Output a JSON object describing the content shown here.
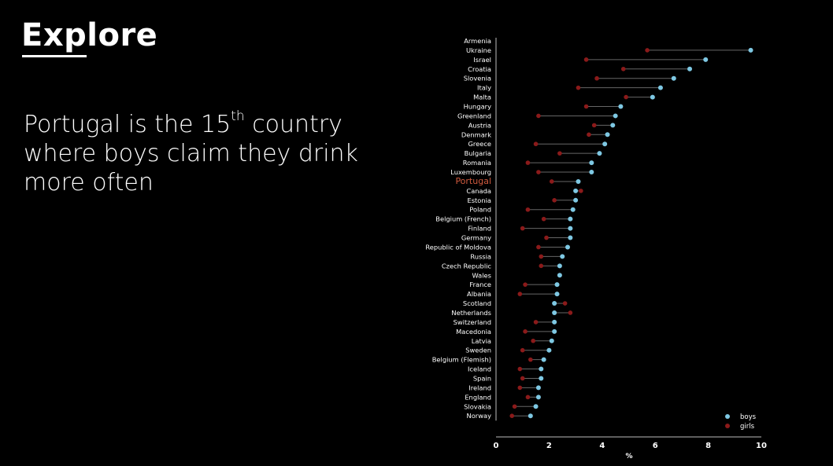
{
  "page": {
    "title": "Explore",
    "subtitle_pre": "Portugal is the 15",
    "subtitle_sup": "th",
    "subtitle_post": " country where boys claim they drink more often"
  },
  "chart_data": {
    "type": "dumbbell",
    "title": "",
    "xlabel": "%",
    "ylabel": "",
    "xlim": [
      0,
      10
    ],
    "xticks": [
      0,
      2,
      4,
      6,
      8,
      10
    ],
    "highlight": "Portugal",
    "legend_position": "bottom-right",
    "colors": {
      "boys": "#7ec8e3",
      "girls": "#8b1a1a",
      "highlight": "#d05a3e",
      "connector": "#666666"
    },
    "categories": [
      "Armenia",
      "Ukraine",
      "Israel",
      "Croatia",
      "Slovenia",
      "Italy",
      "Malta",
      "Hungary",
      "Greenland",
      "Austria",
      "Denmark",
      "Greece",
      "Bulgaria",
      "Romania",
      "Luxembourg",
      "Portugal",
      "Canada",
      "Estonia",
      "Poland",
      "Belgium (French)",
      "Finland",
      "Germany",
      "Republic of Moldova",
      "Russia",
      "Czech Republic",
      "Wales",
      "France",
      "Albania",
      "Scotland",
      "Netherlands",
      "Switzerland",
      "Macedonia",
      "Latvia",
      "Sweden",
      "Belgium (Flemish)",
      "Iceland",
      "Spain",
      "Ireland",
      "England",
      "Slovakia",
      "Norway"
    ],
    "series": [
      {
        "name": "boys",
        "values": [
          null,
          9.6,
          7.9,
          7.3,
          6.7,
          6.2,
          5.9,
          4.7,
          4.5,
          4.4,
          4.2,
          4.1,
          3.9,
          3.6,
          3.6,
          3.1,
          3.0,
          3.0,
          2.9,
          2.8,
          2.8,
          2.8,
          2.7,
          2.5,
          2.4,
          2.4,
          2.3,
          2.3,
          2.2,
          2.2,
          2.2,
          2.2,
          2.1,
          2.0,
          1.8,
          1.7,
          1.7,
          1.6,
          1.6,
          1.5,
          1.3
        ]
      },
      {
        "name": "girls",
        "values": [
          null,
          5.7,
          3.4,
          4.8,
          3.8,
          3.1,
          4.9,
          3.4,
          1.6,
          3.7,
          3.5,
          1.5,
          2.4,
          1.2,
          1.6,
          2.1,
          3.2,
          2.2,
          1.2,
          1.8,
          1.0,
          1.9,
          1.6,
          1.7,
          1.7,
          2.4,
          1.1,
          0.9,
          2.6,
          2.8,
          1.5,
          1.1,
          1.4,
          1.0,
          1.3,
          0.9,
          1.0,
          0.9,
          1.2,
          0.7,
          0.6
        ]
      }
    ]
  }
}
